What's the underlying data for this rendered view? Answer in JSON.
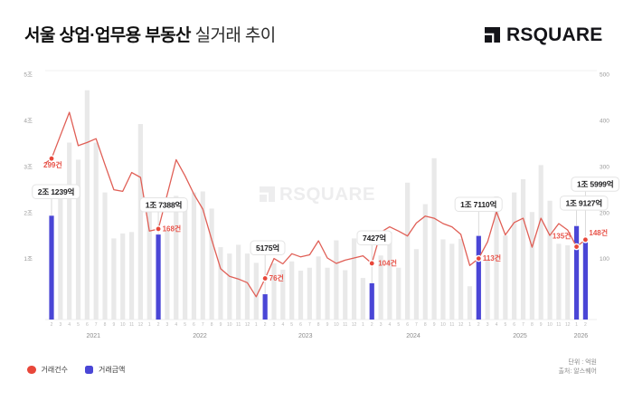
{
  "title": {
    "emphasis": "서울 상업·업무용 부동산",
    "rest": " 실거래 추이"
  },
  "logo": {
    "text": "RSQUARE"
  },
  "watermark": {
    "text": "RSQUARE"
  },
  "legend": {
    "count_label": "거래건수",
    "amount_label": "거래금액"
  },
  "footer": {
    "unit": "단위 : 억원",
    "source": "출처: 알스퀘어"
  },
  "colors": {
    "line": "#e05f56",
    "marker": "#e8473a",
    "count_label": "#e8544a",
    "bar_highlight": "#4a46d6",
    "bar_normal": "#e9e9e9",
    "callout_border": "#e4e4e4",
    "axis_text": "#999999",
    "watermark": "#ededee"
  },
  "chart_data": {
    "type": "bar+line",
    "title": "서울 상업·업무용 부동산 실거래 추이",
    "unit_note": "단위 : 억원",
    "source_note": "출처: 알스퀘어",
    "x_start_month": "2021-02",
    "x_end_month": "2026-02",
    "month_numbers": [
      2,
      3,
      4,
      5,
      6,
      7,
      8,
      9,
      10,
      11,
      12,
      1,
      2,
      3,
      4,
      5,
      6,
      7,
      8,
      9,
      10,
      11,
      12,
      1,
      2,
      3,
      4,
      5,
      6,
      7,
      8,
      9,
      10,
      11,
      12,
      1,
      2,
      3,
      4,
      5,
      6,
      7,
      8,
      9,
      10,
      11,
      12,
      1,
      2,
      3,
      4,
      5,
      6,
      7,
      8,
      9,
      10,
      11,
      12,
      1,
      2
    ],
    "year_labels": [
      "2021",
      "2022",
      "2023",
      "2024",
      "2025",
      "2026"
    ],
    "left_axis": {
      "name": "거래금액(조원)",
      "ticks": [
        "5조",
        "4조",
        "3조",
        "2조",
        "1조"
      ]
    },
    "right_axis": {
      "name": "거래건수(건)",
      "ticks": [
        "500",
        "400",
        "300",
        "200",
        "100"
      ]
    },
    "series": [
      {
        "name": "거래건수",
        "type": "line",
        "unit": "건",
        "values": [
          299,
          342,
          385,
          323,
          329,
          336,
          288,
          241,
          238,
          273,
          264,
          164,
          168,
          232,
          297,
          267,
          233,
          205,
          148,
          94,
          80,
          75,
          68,
          42,
          76,
          113,
          103,
          122,
          116,
          120,
          146,
          114,
          104,
          110,
          114,
          118,
          104,
          162,
          172,
          164,
          155,
          179,
          192,
          188,
          178,
          172,
          158,
          100,
          113,
          144,
          200,
          157,
          180,
          188,
          134,
          188,
          156,
          178,
          166,
          135,
          148
        ]
      },
      {
        "name": "거래금액",
        "type": "bar",
        "unit": "억원",
        "values": [
          21239,
          25200,
          36200,
          32700,
          46900,
          36200,
          26000,
          16600,
          17600,
          17900,
          40000,
          24500,
          17388,
          18300,
          25300,
          23500,
          26000,
          26200,
          22700,
          14800,
          13500,
          15300,
          13500,
          11600,
          5175,
          11500,
          10200,
          11900,
          10000,
          10600,
          12900,
          10600,
          16200,
          10100,
          16600,
          8500,
          7427,
          13100,
          17900,
          10600,
          28000,
          14400,
          23600,
          33000,
          16400,
          15500,
          16500,
          6800,
          17110,
          12400,
          25200,
          17200,
          26000,
          28700,
          22000,
          31600,
          24300,
          15500,
          15200,
          19127,
          15999
        ]
      }
    ],
    "annotations": [
      {
        "index": 0,
        "month": "2021-02",
        "amount_label": "2조 1239억",
        "count_label": "299건"
      },
      {
        "index": 12,
        "month": "2022-02",
        "amount_label": "1조 7388억",
        "count_label": "168건"
      },
      {
        "index": 24,
        "month": "2023-02",
        "amount_label": "5175억",
        "count_label": "76건"
      },
      {
        "index": 36,
        "month": "2024-02",
        "amount_label": "7427억",
        "count_label": "104건"
      },
      {
        "index": 48,
        "month": "2025-02",
        "amount_label": "1조 7110억",
        "count_label": "113건"
      },
      {
        "index": 59,
        "month": "2026-01",
        "amount_label": "1조 9127억",
        "count_label": "135건"
      },
      {
        "index": 60,
        "month": "2026-02",
        "amount_label": "1조 5999억",
        "count_label": "148건"
      }
    ]
  }
}
